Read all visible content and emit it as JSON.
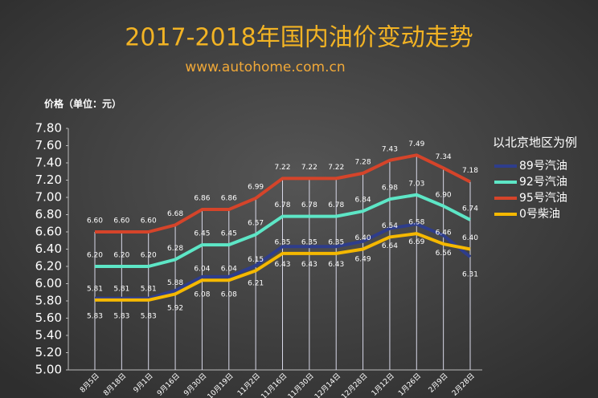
{
  "chart_data": {
    "type": "line",
    "title": "2017-2018年国内油价变动走势",
    "subtitle": "www.autohome.com.cn",
    "y_label": "价格（单位：元）",
    "legend_title": "以北京地区为例",
    "categories": [
      "8月5日",
      "8月18日",
      "9月1日",
      "9月16日",
      "9月30日",
      "10月19日",
      "11月2日",
      "11月16日",
      "11月30日",
      "12月14日",
      "12月28日",
      "1月12日",
      "1月26日",
      "2月9日",
      "2月28日"
    ],
    "series": [
      {
        "name": "89号汽油",
        "color": "#2e3d8c",
        "values": [
          5.83,
          5.83,
          5.83,
          5.92,
          6.08,
          6.08,
          6.21,
          6.43,
          6.43,
          6.43,
          6.49,
          6.64,
          6.69,
          6.56,
          6.31
        ],
        "value_labels": [
          "5.83",
          "5.83",
          "5.83",
          "5.92",
          "6.08",
          "6.08",
          "6.21",
          "6.43",
          "6.43",
          "6.43",
          "6.49",
          "6.64",
          "6.69",
          "6.56",
          "6.31"
        ]
      },
      {
        "name": "92号汽油",
        "color": "#5de6c6",
        "values": [
          6.2,
          6.2,
          6.2,
          6.28,
          6.45,
          6.45,
          6.57,
          6.78,
          6.78,
          6.78,
          6.84,
          6.98,
          7.03,
          6.9,
          6.74
        ],
        "value_labels": [
          "6.20",
          "6.20",
          "6.20",
          "6.28",
          "6.45",
          "6.45",
          "6.57",
          "6.78",
          "6.78",
          "6.78",
          "6.84",
          "6.98",
          "7.03",
          "6.90",
          "6.74"
        ]
      },
      {
        "name": "95号汽油",
        "color": "#d5442a",
        "values": [
          6.6,
          6.6,
          6.6,
          6.68,
          6.86,
          6.86,
          6.99,
          7.22,
          7.22,
          7.22,
          7.28,
          7.43,
          7.49,
          7.34,
          7.18
        ],
        "value_labels": [
          "6.60",
          "6.60",
          "6.60",
          "6.68",
          "6.86",
          "6.86",
          "6.99",
          "7.22",
          "7.22",
          "7.22",
          "7.28",
          "7.43",
          "7.49",
          "7.34",
          "7.18"
        ]
      },
      {
        "name": "0号柴油",
        "color": "#f5b800",
        "values": [
          5.81,
          5.81,
          5.81,
          5.88,
          6.04,
          6.04,
          6.15,
          6.35,
          6.35,
          6.35,
          6.4,
          6.54,
          6.58,
          6.46,
          6.4
        ],
        "value_labels": [
          "5.81",
          "5.81",
          "5.81",
          "5.88",
          "6.04",
          "6.04",
          "6.15",
          "6.35",
          "6.35",
          "6.35",
          "6.40",
          "6.54",
          "6.58",
          "6.46",
          "6.40"
        ]
      }
    ],
    "ylim": [
      5.0,
      7.8
    ],
    "yticks": [
      {
        "value": 5.0,
        "label": "5.00"
      },
      {
        "value": 5.2,
        "label": "5.20"
      },
      {
        "value": 5.4,
        "label": "5.40"
      },
      {
        "value": 5.6,
        "label": "5.60"
      },
      {
        "value": 5.8,
        "label": "5.80"
      },
      {
        "value": 6.0,
        "label": "6.00"
      },
      {
        "value": 6.2,
        "label": "6.20"
      },
      {
        "value": 6.4,
        "label": "6.40"
      },
      {
        "value": 6.6,
        "label": "6.60"
      },
      {
        "value": 6.8,
        "label": "6.80"
      },
      {
        "value": 7.0,
        "label": "7.00"
      },
      {
        "value": 7.2,
        "label": "7.20"
      },
      {
        "value": 7.4,
        "label": "7.40"
      },
      {
        "value": 7.6,
        "label": "7.60"
      },
      {
        "value": 7.8,
        "label": "7.80"
      }
    ]
  }
}
